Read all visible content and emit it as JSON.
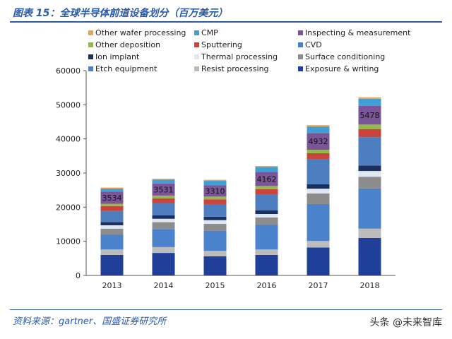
{
  "header": {
    "caption": "图表 15：全球半导体前道设备划分（百万美元）"
  },
  "footer": {
    "source": "资料来源：gartner、国盛证券研究所",
    "watermark": "头条 @未来智库"
  },
  "chart_data": {
    "type": "bar",
    "stacked": true,
    "categories": [
      "2013",
      "2014",
      "2015",
      "2016",
      "2017",
      "2018"
    ],
    "ylim": [
      0,
      60000
    ],
    "yticks": [
      0,
      10000,
      20000,
      30000,
      40000,
      50000,
      60000
    ],
    "grid": false,
    "legend_position": "top",
    "legend_order": [
      "Other wafer processing",
      "CMP",
      "Inspecting & measurement",
      "Other deposition",
      "Sputtering",
      "CVD",
      "Ion implant",
      "Thermal processing",
      "Surface conditioning",
      "Etch equipment",
      "Resist processing",
      "Exposure & writing"
    ],
    "series": [
      {
        "name": "Exposure & writing",
        "color": "#1f3f99",
        "values": [
          6000,
          6600,
          5600,
          6000,
          8200,
          11000
        ]
      },
      {
        "name": "Resist processing",
        "color": "#bcbcbc",
        "values": [
          1600,
          1700,
          1600,
          1600,
          1900,
          2700
        ]
      },
      {
        "name": "Etch equipment",
        "color": "#4a82cc",
        "values": [
          4300,
          5300,
          5900,
          7200,
          10800,
          11800
        ]
      },
      {
        "name": "Surface conditioning",
        "color": "#8c8c8c",
        "values": [
          1800,
          2000,
          2000,
          2200,
          3100,
          3400
        ]
      },
      {
        "name": "Thermal processing",
        "color": "#dfe8f2",
        "values": [
          1000,
          1000,
          1100,
          1000,
          1400,
          1700
        ]
      },
      {
        "name": "Ion implant",
        "color": "#1d2f5e",
        "values": [
          900,
          1000,
          1000,
          1100,
          1300,
          1600
        ]
      },
      {
        "name": "CVD",
        "color": "#4d7fc0",
        "values": [
          3300,
          3600,
          3700,
          4700,
          7300,
          8300
        ]
      },
      {
        "name": "Sputtering",
        "color": "#c9443c",
        "values": [
          1400,
          1400,
          1400,
          1500,
          1800,
          2400
        ]
      },
      {
        "name": "Other deposition",
        "color": "#96b94b",
        "values": [
          700,
          800,
          800,
          900,
          1000,
          1300
        ]
      },
      {
        "name": "Inspecting & measurement",
        "color": "#7a5597",
        "values": [
          3534,
          3531,
          3310,
          4162,
          4932,
          5478
        ]
      },
      {
        "name": "CMP",
        "color": "#3f9fd6",
        "values": [
          900,
          1100,
          1300,
          1400,
          1900,
          2100
        ]
      },
      {
        "name": "Other wafer processing",
        "color": "#f2a14a",
        "values": [
          300,
          300,
          300,
          300,
          400,
          400
        ]
      }
    ],
    "data_labels": {
      "series": "Inspecting & measurement",
      "values": [
        3534,
        3531,
        3310,
        4162,
        4932,
        5478
      ]
    }
  }
}
